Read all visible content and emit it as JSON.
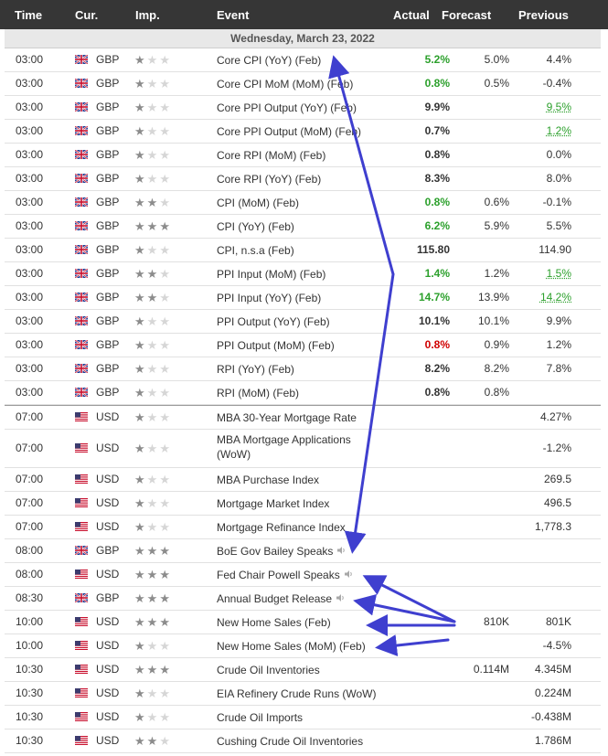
{
  "columns": {
    "time": "Time",
    "currency": "Cur.",
    "importance": "Imp.",
    "event": "Event",
    "actual": "Actual",
    "forecast": "Forecast",
    "previous": "Previous"
  },
  "date_header": "Wednesday, March 23, 2022",
  "colors": {
    "header_bg": "#363636",
    "positive": "#2ca02c",
    "negative": "#d00000",
    "annotation": "#3f3fcf"
  },
  "events": [
    {
      "time": "03:00",
      "currency": "GBP",
      "flag": "uk",
      "stars": 1,
      "event": "Core CPI (YoY) (Feb)",
      "actual": "5.2%",
      "actual_color": "green",
      "forecast": "5.0%",
      "previous": "4.4%"
    },
    {
      "time": "03:00",
      "currency": "GBP",
      "flag": "uk",
      "stars": 1,
      "event": "Core CPI MoM (MoM) (Feb)",
      "actual": "0.8%",
      "actual_color": "green",
      "forecast": "0.5%",
      "previous": "-0.4%"
    },
    {
      "time": "03:00",
      "currency": "GBP",
      "flag": "uk",
      "stars": 1,
      "event": "Core PPI Output (YoY) (Feb)",
      "actual": "9.9%",
      "forecast": "",
      "previous": "9.5%",
      "previous_color": "green"
    },
    {
      "time": "03:00",
      "currency": "GBP",
      "flag": "uk",
      "stars": 1,
      "event": "Core PPI Output (MoM) (Feb)",
      "actual": "0.7%",
      "forecast": "",
      "previous": "1.2%",
      "previous_color": "green"
    },
    {
      "time": "03:00",
      "currency": "GBP",
      "flag": "uk",
      "stars": 1,
      "event": "Core RPI (MoM) (Feb)",
      "actual": "0.8%",
      "forecast": "",
      "previous": "0.0%"
    },
    {
      "time": "03:00",
      "currency": "GBP",
      "flag": "uk",
      "stars": 1,
      "event": "Core RPI (YoY) (Feb)",
      "actual": "8.3%",
      "forecast": "",
      "previous": "8.0%"
    },
    {
      "time": "03:00",
      "currency": "GBP",
      "flag": "uk",
      "stars": 2,
      "event": "CPI (MoM) (Feb)",
      "actual": "0.8%",
      "actual_color": "green",
      "forecast": "0.6%",
      "previous": "-0.1%"
    },
    {
      "time": "03:00",
      "currency": "GBP",
      "flag": "uk",
      "stars": 3,
      "event": "CPI (YoY) (Feb)",
      "actual": "6.2%",
      "actual_color": "green",
      "forecast": "5.9%",
      "previous": "5.5%"
    },
    {
      "time": "03:00",
      "currency": "GBP",
      "flag": "uk",
      "stars": 1,
      "event": "CPI, n.s.a (Feb)",
      "actual": "115.80",
      "forecast": "",
      "previous": "114.90"
    },
    {
      "time": "03:00",
      "currency": "GBP",
      "flag": "uk",
      "stars": 2,
      "event": "PPI Input (MoM) (Feb)",
      "actual": "1.4%",
      "actual_color": "green",
      "forecast": "1.2%",
      "previous": "1.5%",
      "previous_color": "green"
    },
    {
      "time": "03:00",
      "currency": "GBP",
      "flag": "uk",
      "stars": 2,
      "event": "PPI Input (YoY) (Feb)",
      "actual": "14.7%",
      "actual_color": "green",
      "forecast": "13.9%",
      "previous": "14.2%",
      "previous_color": "green"
    },
    {
      "time": "03:00",
      "currency": "GBP",
      "flag": "uk",
      "stars": 1,
      "event": "PPI Output (YoY) (Feb)",
      "actual": "10.1%",
      "forecast": "10.1%",
      "previous": "9.9%"
    },
    {
      "time": "03:00",
      "currency": "GBP",
      "flag": "uk",
      "stars": 1,
      "event": "PPI Output (MoM) (Feb)",
      "actual": "0.8%",
      "actual_color": "red",
      "forecast": "0.9%",
      "previous": "1.2%"
    },
    {
      "time": "03:00",
      "currency": "GBP",
      "flag": "uk",
      "stars": 1,
      "event": "RPI (YoY) (Feb)",
      "actual": "8.2%",
      "forecast": "8.2%",
      "previous": "7.8%"
    },
    {
      "time": "03:00",
      "currency": "GBP",
      "flag": "uk",
      "stars": 1,
      "event": "RPI (MoM) (Feb)",
      "actual": "0.8%",
      "forecast": "0.8%",
      "previous": ""
    },
    {
      "time": "07:00",
      "currency": "USD",
      "flag": "us",
      "stars": 1,
      "event": "MBA 30-Year Mortgage Rate",
      "actual": "",
      "forecast": "",
      "previous": "4.27%",
      "separator": true
    },
    {
      "time": "07:00",
      "currency": "USD",
      "flag": "us",
      "stars": 1,
      "event": "MBA Mortgage Applications (WoW)",
      "event_line1": "MBA Mortgage Applications",
      "event_line2": "(WoW)",
      "actual": "",
      "forecast": "",
      "previous": "-1.2%",
      "tall": true
    },
    {
      "time": "07:00",
      "currency": "USD",
      "flag": "us",
      "stars": 1,
      "event": "MBA Purchase Index",
      "actual": "",
      "forecast": "",
      "previous": "269.5"
    },
    {
      "time": "07:00",
      "currency": "USD",
      "flag": "us",
      "stars": 1,
      "event": "Mortgage Market Index",
      "actual": "",
      "forecast": "",
      "previous": "496.5"
    },
    {
      "time": "07:00",
      "currency": "USD",
      "flag": "us",
      "stars": 1,
      "event": "Mortgage Refinance Index",
      "actual": "",
      "forecast": "",
      "previous": "1,778.3"
    },
    {
      "time": "08:00",
      "currency": "GBP",
      "flag": "uk",
      "stars": 3,
      "event": "BoE Gov Bailey Speaks",
      "speech": true,
      "actual": "",
      "forecast": "",
      "previous": ""
    },
    {
      "time": "08:00",
      "currency": "USD",
      "flag": "us",
      "stars": 3,
      "event": "Fed Chair Powell Speaks",
      "speech": true,
      "actual": "",
      "forecast": "",
      "previous": ""
    },
    {
      "time": "08:30",
      "currency": "GBP",
      "flag": "uk",
      "stars": 3,
      "event": "Annual Budget Release",
      "speech": true,
      "actual": "",
      "forecast": "",
      "previous": ""
    },
    {
      "time": "10:00",
      "currency": "USD",
      "flag": "us",
      "stars": 3,
      "event": "New Home Sales (Feb)",
      "actual": "",
      "forecast": "810K",
      "previous": "801K"
    },
    {
      "time": "10:00",
      "currency": "USD",
      "flag": "us",
      "stars": 1,
      "event": "New Home Sales (MoM) (Feb)",
      "actual": "",
      "forecast": "",
      "previous": "-4.5%"
    },
    {
      "time": "10:30",
      "currency": "USD",
      "flag": "us",
      "stars": 3,
      "event": "Crude Oil Inventories",
      "actual": "",
      "forecast": "0.114M",
      "previous": "4.345M"
    },
    {
      "time": "10:30",
      "currency": "USD",
      "flag": "us",
      "stars": 1,
      "event": "EIA Refinery Crude Runs (WoW)",
      "actual": "",
      "forecast": "",
      "previous": "0.224M"
    },
    {
      "time": "10:30",
      "currency": "USD",
      "flag": "us",
      "stars": 1,
      "event": "Crude Oil Imports",
      "actual": "",
      "forecast": "",
      "previous": "-0.438M"
    },
    {
      "time": "10:30",
      "currency": "USD",
      "flag": "us",
      "stars": 2,
      "event": "Cushing Crude Oil Inventories",
      "actual": "",
      "forecast": "",
      "previous": "1.786M"
    }
  ]
}
